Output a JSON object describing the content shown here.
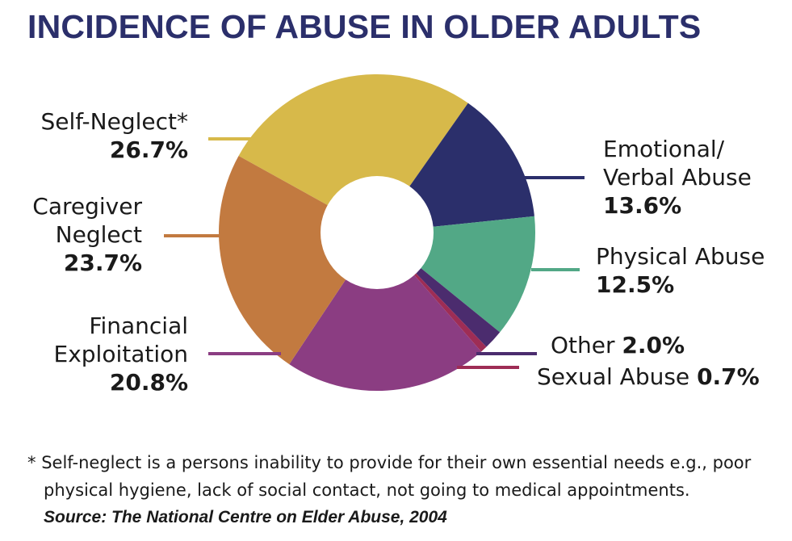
{
  "chart_data": {
    "type": "pie",
    "title": "INCIDENCE OF ABUSE IN OLDER ADULTS",
    "unit": "%",
    "slices": [
      {
        "label_lines": [
          "Self-Neglect*"
        ],
        "value": 26.7,
        "value_text": "26.7%",
        "color": "#d7b94a"
      },
      {
        "label_lines": [
          "Emotional/",
          "Verbal Abuse"
        ],
        "value": 13.6,
        "value_text": "13.6%",
        "color": "#2b2f6b"
      },
      {
        "label_lines": [
          "Physical Abuse"
        ],
        "value": 12.5,
        "value_text": "12.5%",
        "color": "#52a886"
      },
      {
        "label_lines": [
          "Other"
        ],
        "value": 2.0,
        "value_text": "2.0%",
        "color": "#4b2c6e"
      },
      {
        "label_lines": [
          "Sexual Abuse"
        ],
        "value": 0.7,
        "value_text": "0.7%",
        "color": "#9e2d55"
      },
      {
        "label_lines": [
          "Financial",
          "Exploitation"
        ],
        "value": 20.8,
        "value_text": "20.8%",
        "color": "#8b3d82"
      },
      {
        "label_lines": [
          "Caregiver",
          "Neglect"
        ],
        "value": 23.7,
        "value_text": "23.7%",
        "color": "#c27a40"
      }
    ],
    "footnote": "Self-neglect is a persons inability to provide for their own essential needs e.g., poor physical hygiene, lack of social contact, not going to medical appointments.",
    "footnote_line1": "Self-neglect is a persons inability to provide for their own essential needs e.g., poor",
    "footnote_line2": "physical hygiene, lack of social contact, not going to medical appointments.",
    "footnote_marker": "*",
    "source": "Source: The National Centre on Elder Abuse, 2004"
  }
}
